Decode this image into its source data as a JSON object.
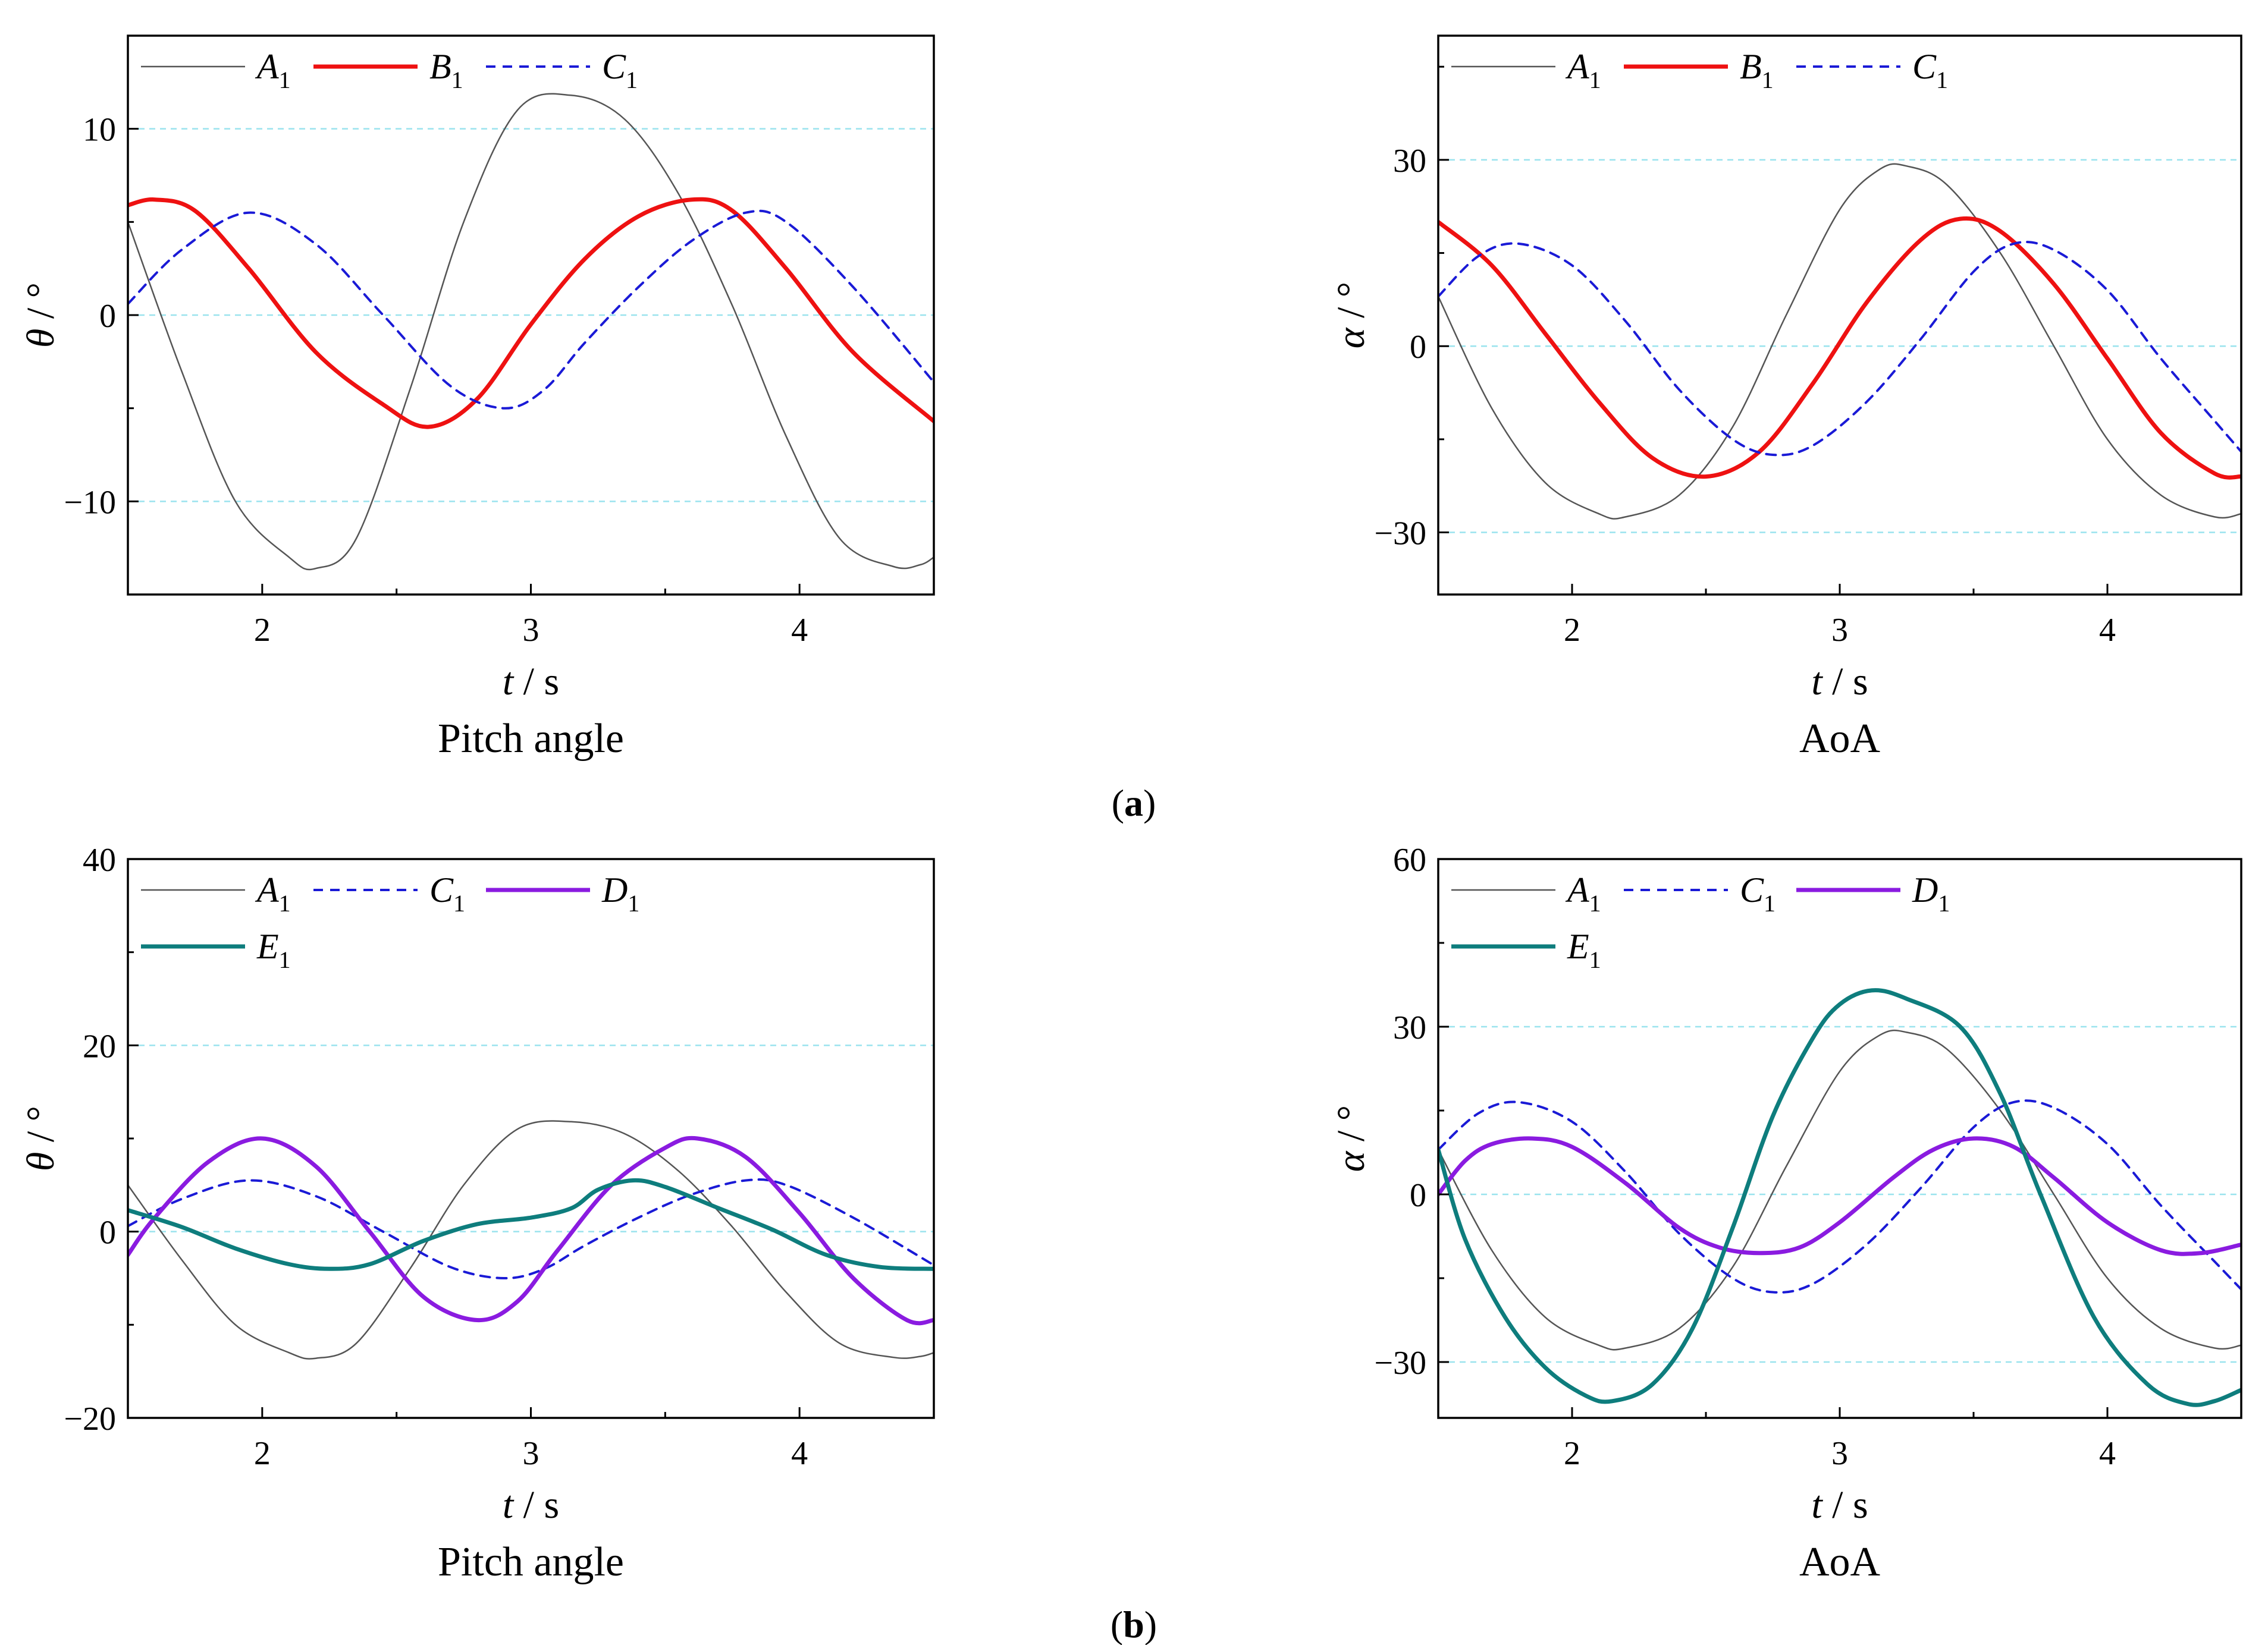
{
  "figure": {
    "row_labels": [
      {
        "open": "(",
        "letter": "a",
        "close": ")"
      },
      {
        "open": "(",
        "letter": "b",
        "close": ")"
      }
    ]
  },
  "series_styles": {
    "A": {
      "color": "#555555",
      "width": 2.5,
      "dash": ""
    },
    "B": {
      "color": "#ee1111",
      "width": 7,
      "dash": ""
    },
    "C": {
      "color": "#1a1ad6",
      "width": 4,
      "dash": "16,12"
    },
    "D": {
      "color": "#8a1be0",
      "width": 7,
      "dash": ""
    },
    "E": {
      "color": "#0e7d7d",
      "width": 7,
      "dash": ""
    }
  },
  "chart_data": [
    {
      "type": "line",
      "caption": "Pitch angle",
      "xlabel": {
        "var": "t",
        "unit": " / s"
      },
      "ylabel": {
        "var": "θ",
        "unit": " / °"
      },
      "xlim": [
        1.5,
        4.5
      ],
      "ylim": [
        -15,
        15
      ],
      "xticks": [
        2,
        3,
        4
      ],
      "yticks": [
        -10,
        0,
        10
      ],
      "ytick_labels": [
        "−10",
        "0",
        "10"
      ],
      "grid": "dashed-horizontal",
      "legend_rows": [
        [
          "A"
        ],
        [
          "B"
        ],
        [
          "C"
        ]
      ],
      "series": [
        {
          "key": "A",
          "letter": "A",
          "sub": "1",
          "x": [
            1.5,
            1.7,
            1.9,
            2.1,
            2.2,
            2.35,
            2.55,
            2.75,
            2.95,
            3.15,
            3.35,
            3.55,
            3.75,
            3.95,
            4.15,
            4.35,
            4.45,
            4.5
          ],
          "y": [
            5.0,
            -3.0,
            -10.0,
            -13.0,
            -13.6,
            -12.0,
            -4.0,
            5.0,
            11.0,
            11.8,
            10.5,
            6.5,
            0.5,
            -6.5,
            -12.0,
            -13.5,
            -13.4,
            -13.0
          ]
        },
        {
          "key": "B",
          "letter": "B",
          "sub": "1",
          "x": [
            1.5,
            1.6,
            1.75,
            1.95,
            2.2,
            2.45,
            2.62,
            2.8,
            3.0,
            3.2,
            3.4,
            3.6,
            3.75,
            3.95,
            4.2,
            4.5
          ],
          "y": [
            5.9,
            6.2,
            5.6,
            2.5,
            -2.0,
            -4.8,
            -6.0,
            -4.5,
            -0.5,
            3.0,
            5.3,
            6.2,
            5.6,
            2.5,
            -2.0,
            -5.7
          ]
        },
        {
          "key": "C",
          "letter": "C",
          "sub": "1",
          "x": [
            1.5,
            1.7,
            1.95,
            2.2,
            2.45,
            2.7,
            2.9,
            3.05,
            3.2,
            3.4,
            3.6,
            3.8,
            3.95,
            4.2,
            4.5
          ],
          "y": [
            0.6,
            3.5,
            5.5,
            3.8,
            0.0,
            -3.8,
            -5.0,
            -4.0,
            -1.5,
            1.5,
            4.0,
            5.5,
            5.0,
            1.5,
            -3.6
          ]
        }
      ]
    },
    {
      "type": "line",
      "caption": "AoA",
      "xlabel": {
        "var": "t",
        "unit": " / s"
      },
      "ylabel": {
        "var": "α",
        "unit": " / °"
      },
      "xlim": [
        1.5,
        4.5
      ],
      "ylim": [
        -40,
        50
      ],
      "xticks": [
        2,
        3,
        4
      ],
      "yticks": [
        -30,
        0,
        30
      ],
      "ytick_labels": [
        "−30",
        "0",
        "30"
      ],
      "grid": "dashed-horizontal",
      "legend_rows": [
        [
          "A",
          "B",
          "C"
        ]
      ],
      "series": [
        {
          "key": "A",
          "letter": "A",
          "sub": "1",
          "x": [
            1.5,
            1.7,
            1.9,
            2.1,
            2.2,
            2.4,
            2.6,
            2.8,
            3.0,
            3.15,
            3.25,
            3.4,
            3.6,
            3.8,
            4.0,
            4.2,
            4.4,
            4.5
          ],
          "y": [
            8.0,
            -10.0,
            -22.0,
            -27.0,
            -27.5,
            -24.0,
            -13.0,
            5.0,
            22.0,
            28.5,
            29.0,
            26.0,
            15.0,
            0.0,
            -15.0,
            -24.0,
            -27.5,
            -27.0
          ]
        },
        {
          "key": "B",
          "letter": "B",
          "sub": "1",
          "x": [
            1.5,
            1.7,
            1.9,
            2.1,
            2.3,
            2.5,
            2.7,
            2.9,
            3.1,
            3.3,
            3.45,
            3.6,
            3.8,
            4.0,
            4.2,
            4.4,
            4.5
          ],
          "y": [
            20.0,
            13.0,
            2.0,
            -9.0,
            -18.0,
            -21.0,
            -17.0,
            -6.0,
            7.0,
            17.0,
            20.5,
            18.5,
            10.0,
            -2.0,
            -14.0,
            -20.5,
            -21.0
          ]
        },
        {
          "key": "C",
          "letter": "C",
          "sub": "1",
          "x": [
            1.5,
            1.65,
            1.8,
            2.0,
            2.2,
            2.4,
            2.6,
            2.75,
            2.9,
            3.1,
            3.3,
            3.5,
            3.65,
            3.8,
            4.0,
            4.2,
            4.4,
            4.5
          ],
          "y": [
            8.0,
            14.5,
            16.5,
            13.0,
            4.0,
            -7.0,
            -15.0,
            -17.5,
            -16.0,
            -9.0,
            1.0,
            12.0,
            16.5,
            15.5,
            9.0,
            -2.0,
            -12.0,
            -17.0
          ]
        }
      ]
    },
    {
      "type": "line",
      "caption": "Pitch angle",
      "xlabel": {
        "var": "t",
        "unit": " / s"
      },
      "ylabel": {
        "var": "θ",
        "unit": " / °"
      },
      "xlim": [
        1.5,
        4.5
      ],
      "ylim": [
        -20,
        40
      ],
      "xticks": [
        2,
        3,
        4
      ],
      "yticks": [
        -20,
        0,
        20,
        40
      ],
      "ytick_labels": [
        "−20",
        "0",
        "20",
        "40"
      ],
      "grid": "dashed-horizontal",
      "legend_rows": [
        [
          "A",
          "C",
          "D"
        ],
        [
          "E"
        ]
      ],
      "series": [
        {
          "key": "A",
          "letter": "A",
          "sub": "1",
          "x": [
            1.5,
            1.7,
            1.9,
            2.1,
            2.2,
            2.35,
            2.55,
            2.75,
            2.95,
            3.15,
            3.35,
            3.55,
            3.75,
            3.95,
            4.15,
            4.35,
            4.45,
            4.5
          ],
          "y": [
            5.0,
            -3.0,
            -10.0,
            -13.0,
            -13.6,
            -12.0,
            -4.0,
            5.0,
            11.0,
            11.8,
            10.5,
            6.5,
            0.5,
            -6.5,
            -12.0,
            -13.5,
            -13.4,
            -13.0
          ]
        },
        {
          "key": "C",
          "letter": "C",
          "sub": "1",
          "x": [
            1.5,
            1.7,
            1.95,
            2.2,
            2.45,
            2.7,
            2.9,
            3.05,
            3.2,
            3.4,
            3.6,
            3.8,
            3.95,
            4.2,
            4.5
          ],
          "y": [
            0.6,
            3.5,
            5.5,
            3.8,
            0.0,
            -3.8,
            -5.0,
            -4.0,
            -1.5,
            1.5,
            4.0,
            5.5,
            5.0,
            1.5,
            -3.6
          ]
        },
        {
          "key": "D",
          "letter": "D",
          "sub": "1",
          "x": [
            1.5,
            1.6,
            1.8,
            2.0,
            2.2,
            2.4,
            2.6,
            2.8,
            2.95,
            3.1,
            3.3,
            3.5,
            3.62,
            3.8,
            4.0,
            4.2,
            4.4,
            4.5
          ],
          "y": [
            -2.5,
            1.5,
            7.5,
            10.0,
            7.0,
            0.0,
            -7.0,
            -9.5,
            -7.5,
            -2.0,
            5.0,
            9.0,
            10.0,
            8.0,
            2.0,
            -5.0,
            -9.5,
            -9.5
          ]
        },
        {
          "key": "E",
          "letter": "E",
          "sub": "1",
          "x": [
            1.5,
            1.7,
            1.9,
            2.1,
            2.25,
            2.4,
            2.6,
            2.8,
            3.0,
            3.15,
            3.25,
            3.38,
            3.5,
            3.7,
            3.9,
            4.1,
            4.3,
            4.5
          ],
          "y": [
            2.3,
            0.5,
            -1.8,
            -3.5,
            -4.0,
            -3.5,
            -1.0,
            0.8,
            1.5,
            2.5,
            4.5,
            5.5,
            4.8,
            2.5,
            0.2,
            -2.5,
            -3.8,
            -4.0
          ]
        }
      ]
    },
    {
      "type": "line",
      "caption": "AoA",
      "xlabel": {
        "var": "t",
        "unit": " / s"
      },
      "ylabel": {
        "var": "α",
        "unit": " / °"
      },
      "xlim": [
        1.5,
        4.5
      ],
      "ylim": [
        -40,
        60
      ],
      "xticks": [
        2,
        3,
        4
      ],
      "yticks": [
        -30,
        0,
        30,
        60
      ],
      "ytick_labels": [
        "−30",
        "0",
        "30",
        "60"
      ],
      "grid": "dashed-horizontal",
      "legend_rows": [
        [
          "A",
          "C",
          "D"
        ],
        [
          "E"
        ]
      ],
      "series": [
        {
          "key": "A",
          "letter": "A",
          "sub": "1",
          "x": [
            1.5,
            1.7,
            1.9,
            2.1,
            2.2,
            2.4,
            2.6,
            2.8,
            3.0,
            3.15,
            3.25,
            3.4,
            3.6,
            3.8,
            4.0,
            4.2,
            4.4,
            4.5
          ],
          "y": [
            8.0,
            -10.0,
            -22.0,
            -27.0,
            -27.5,
            -24.0,
            -13.0,
            5.0,
            22.0,
            28.5,
            29.0,
            26.0,
            15.0,
            0.0,
            -15.0,
            -24.0,
            -27.5,
            -27.0
          ]
        },
        {
          "key": "C",
          "letter": "C",
          "sub": "1",
          "x": [
            1.5,
            1.65,
            1.8,
            2.0,
            2.2,
            2.4,
            2.6,
            2.75,
            2.9,
            3.1,
            3.3,
            3.5,
            3.65,
            3.8,
            4.0,
            4.2,
            4.4,
            4.5
          ],
          "y": [
            8.0,
            14.5,
            16.5,
            13.0,
            4.0,
            -7.0,
            -15.0,
            -17.5,
            -16.0,
            -9.0,
            1.0,
            12.0,
            16.5,
            15.5,
            9.0,
            -2.0,
            -12.0,
            -17.0
          ]
        },
        {
          "key": "D",
          "letter": "D",
          "sub": "1",
          "x": [
            1.5,
            1.6,
            1.7,
            1.85,
            2.0,
            2.2,
            2.4,
            2.55,
            2.7,
            2.85,
            3.0,
            3.2,
            3.35,
            3.5,
            3.65,
            3.8,
            4.0,
            4.2,
            4.35,
            4.5
          ],
          "y": [
            0.0,
            6.0,
            9.0,
            10.0,
            8.5,
            2.0,
            -6.0,
            -9.5,
            -10.5,
            -9.5,
            -5.0,
            3.0,
            8.0,
            10.0,
            8.5,
            3.0,
            -5.0,
            -10.0,
            -10.5,
            -9.0
          ]
        },
        {
          "key": "E",
          "letter": "E",
          "sub": "1",
          "x": [
            1.5,
            1.6,
            1.75,
            1.9,
            2.05,
            2.15,
            2.3,
            2.45,
            2.6,
            2.75,
            2.9,
            3.0,
            3.12,
            3.25,
            3.45,
            3.6,
            3.75,
            3.95,
            4.15,
            4.3,
            4.4,
            4.5
          ],
          "y": [
            8.0,
            -8.0,
            -22.0,
            -31.0,
            -36.0,
            -37.0,
            -34.0,
            -24.0,
            -6.0,
            14.0,
            28.0,
            34.0,
            36.5,
            35.0,
            30.0,
            18.0,
            0.0,
            -22.0,
            -34.0,
            -37.5,
            -37.0,
            -35.0
          ]
        }
      ]
    }
  ]
}
